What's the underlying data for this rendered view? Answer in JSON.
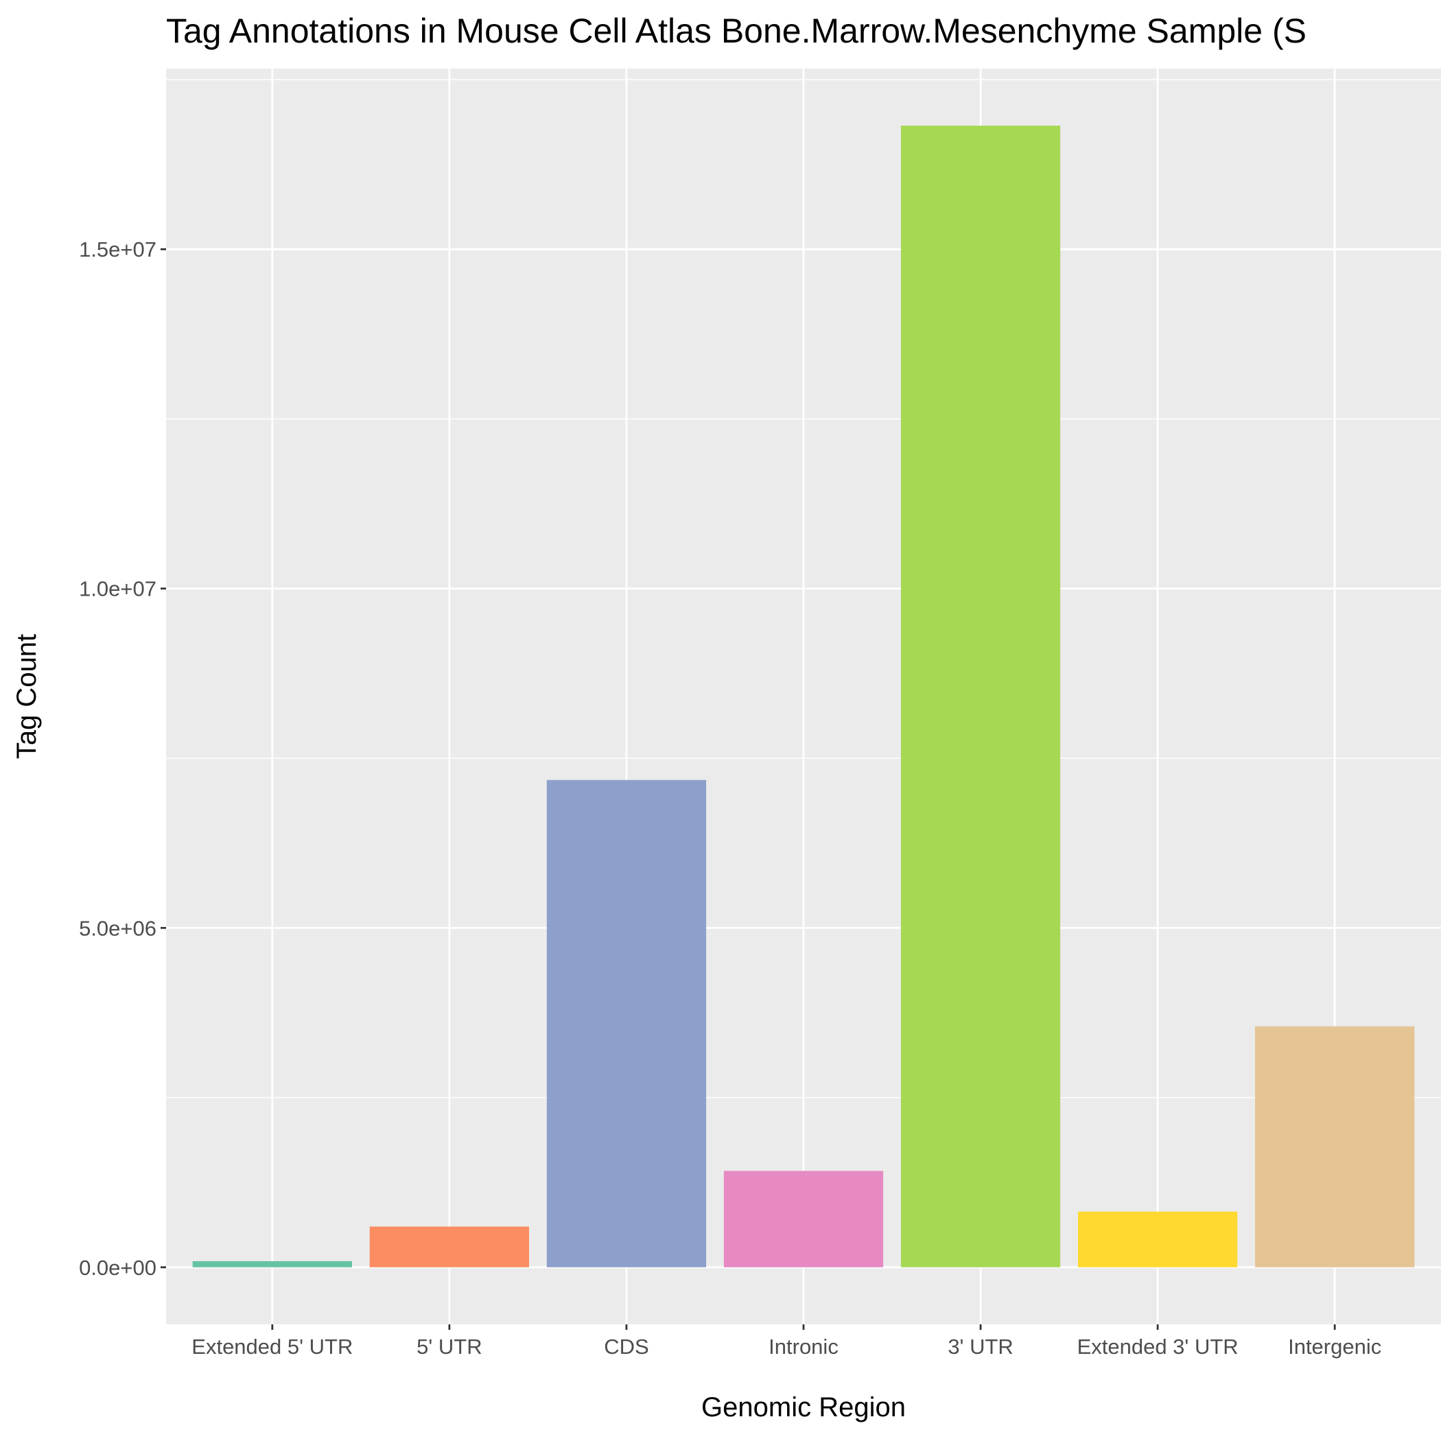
{
  "chart_data": {
    "type": "bar",
    "title": "Tag Annotations in Mouse Cell Atlas Bone.Marrow.Mesenchyme Sample (S",
    "xlabel": "Genomic Region",
    "ylabel": "Tag Count",
    "categories": [
      "Extended 5' UTR",
      "5' UTR",
      "CDS",
      "Intronic",
      "3' UTR",
      "Extended 3' UTR",
      "Intergenic"
    ],
    "values": [
      90000,
      600000,
      7180000,
      1420000,
      16820000,
      820000,
      3550000
    ],
    "colors": [
      "#66C2A5",
      "#FC8D62",
      "#8DA0CB",
      "#E78AC3",
      "#A6D854",
      "#FFD92F",
      "#E5C494"
    ],
    "ylim": [
      -841000,
      17661000
    ],
    "yticks": [
      0,
      5000000,
      10000000,
      15000000
    ],
    "ytick_labels": [
      "0.0e+00",
      "5.0e+06",
      "1.0e+07",
      "1.5e+07"
    ],
    "grid": true,
    "panel_color": "#EBEBEB",
    "legend": "none"
  }
}
